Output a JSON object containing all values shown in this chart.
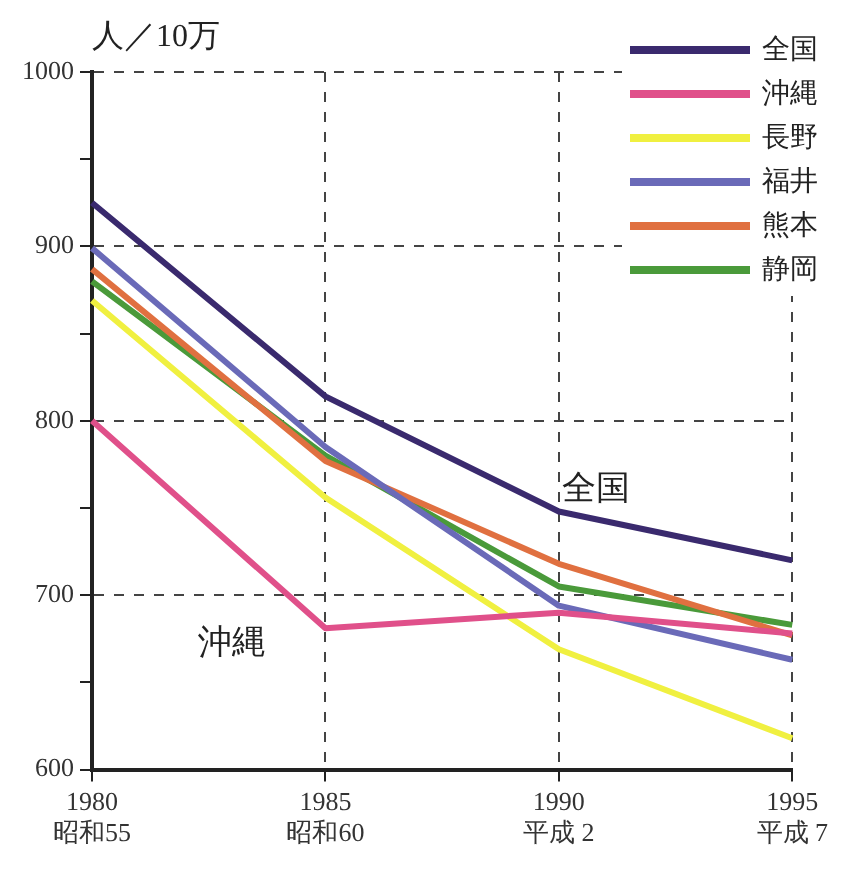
{
  "chart_data": {
    "type": "line",
    "ylabel": "人／10万",
    "categories": [
      "1980\n昭和55",
      "1985\n昭和60",
      "1990\n平成 2",
      "1995\n平成 7"
    ],
    "series": [
      {
        "name": "全国",
        "color": "#3a2a6e",
        "values": [
          925,
          814,
          748,
          720
        ]
      },
      {
        "name": "沖縄",
        "color": "#e0508a",
        "values": [
          800,
          681,
          690,
          678
        ]
      },
      {
        "name": "長野",
        "color": "#f0f040",
        "values": [
          869,
          756,
          669,
          618
        ]
      },
      {
        "name": "福井",
        "color": "#6a6ab8",
        "values": [
          899,
          785,
          694,
          663
        ]
      },
      {
        "name": "熊本",
        "color": "#e07040",
        "values": [
          887,
          777,
          718,
          677
        ]
      },
      {
        "name": "静岡",
        "color": "#4a9a3a",
        "values": [
          880,
          780,
          705,
          683
        ]
      }
    ],
    "ylim": [
      600,
      1000
    ],
    "yticks": [
      600,
      {
        "value": 650,
        "label": null
      },
      700,
      {
        "value": 750,
        "label": null
      },
      800,
      {
        "value": 850,
        "label": null
      },
      900,
      {
        "value": 950,
        "label": null
      },
      1000
    ],
    "annotations": [
      "全国",
      "沖縄"
    ],
    "grid": true,
    "legend": "top right",
    "line_style": "solid"
  }
}
